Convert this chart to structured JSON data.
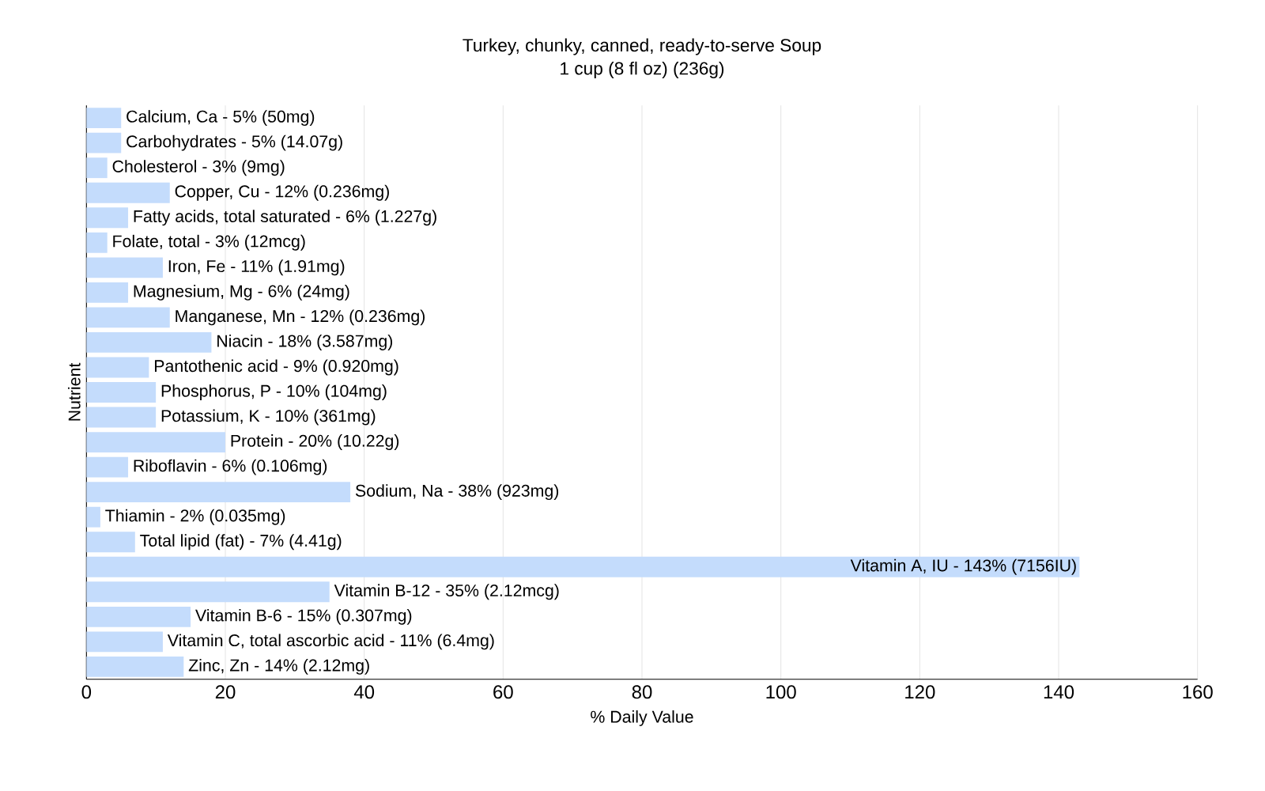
{
  "chart_data": {
    "type": "bar",
    "orientation": "horizontal",
    "title": "Turkey, chunky, canned, ready-to-serve Soup",
    "subtitle": "1 cup (8 fl oz) (236g)",
    "xlabel": "% Daily Value",
    "ylabel": "Nutrient",
    "categories": [
      "Calcium, Ca - 5% (50mg)",
      "Carbohydrates - 5% (14.07g)",
      "Cholesterol - 3% (9mg)",
      "Copper, Cu - 12% (0.236mg)",
      "Fatty acids, total saturated - 6% (1.227g)",
      "Folate, total - 3% (12mcg)",
      "Iron, Fe - 11% (1.91mg)",
      "Magnesium, Mg - 6% (24mg)",
      "Manganese, Mn - 12% (0.236mg)",
      "Niacin - 18% (3.587mg)",
      "Pantothenic acid - 9% (0.920mg)",
      "Phosphorus, P - 10% (104mg)",
      "Potassium, K - 10% (361mg)",
      "Protein - 20% (10.22g)",
      "Riboflavin - 6% (0.106mg)",
      "Sodium, Na - 38% (923mg)",
      "Thiamin - 2% (0.035mg)",
      "Total lipid (fat) - 7% (4.41g)",
      "Vitamin A, IU - 143% (7156IU)",
      "Vitamin B-12 - 35% (2.12mcg)",
      "Vitamin B-6 - 15% (0.307mg)",
      "Vitamin C, total ascorbic acid - 11% (6.4mg)",
      "Zinc, Zn - 14% (2.12mg)"
    ],
    "values": [
      5,
      5,
      3,
      12,
      6,
      3,
      11,
      6,
      12,
      18,
      9,
      10,
      10,
      20,
      6,
      38,
      2,
      7,
      143,
      35,
      15,
      11,
      14
    ],
    "color": "#c4dcfc",
    "xlim": [
      0,
      160
    ],
    "xticks": [
      0,
      20,
      40,
      60,
      80,
      100,
      120,
      140,
      160
    ],
    "grid": "x"
  }
}
